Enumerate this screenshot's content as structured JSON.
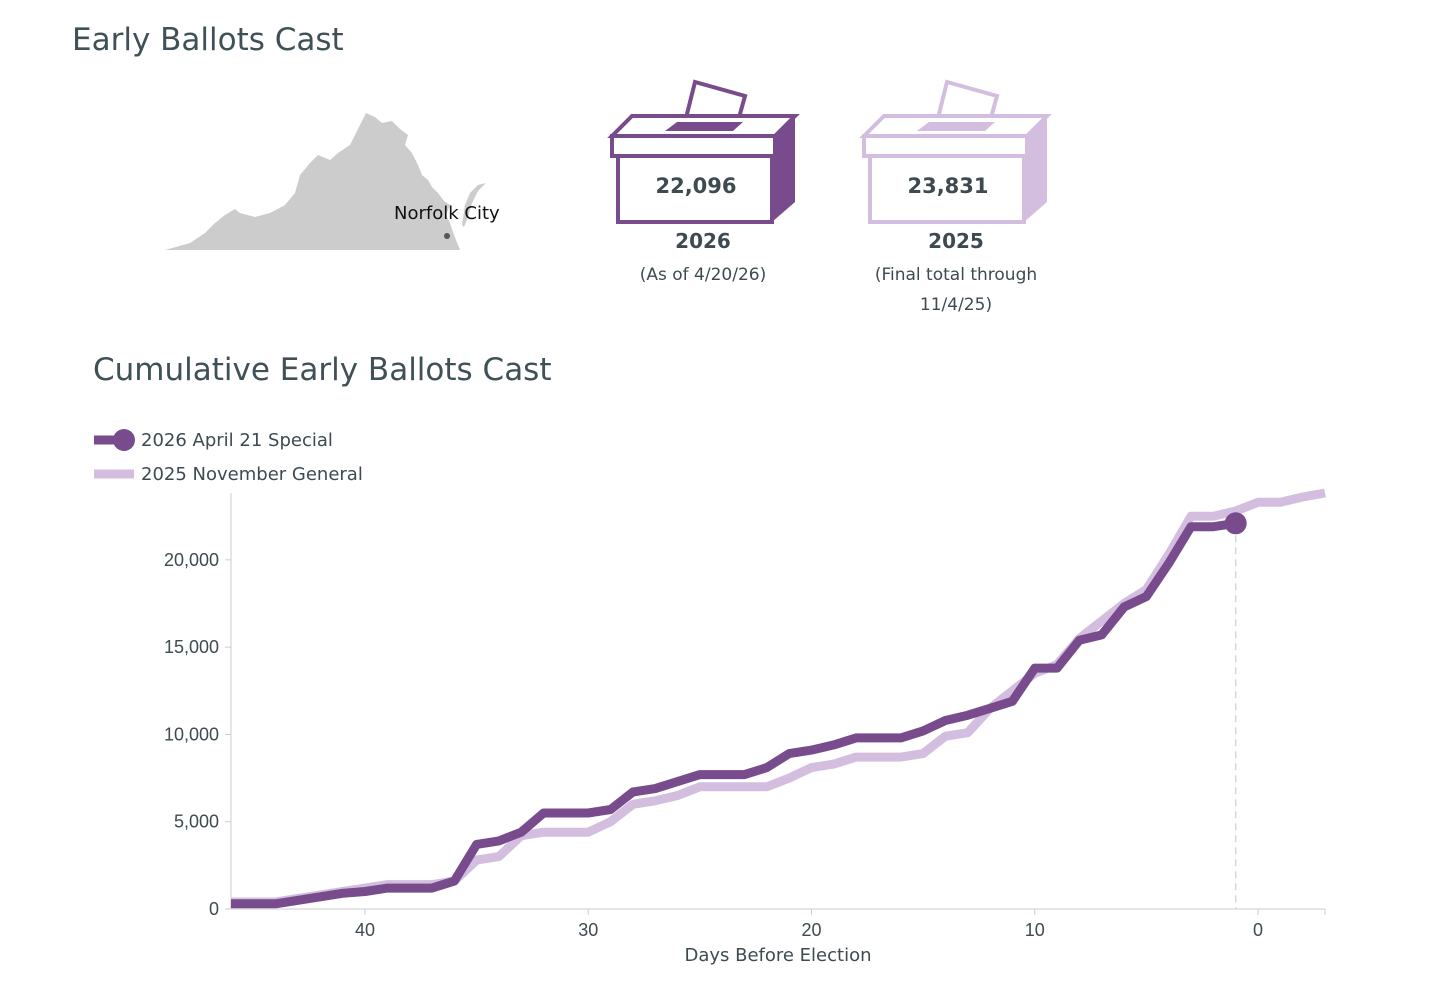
{
  "header": {
    "title": "Early Ballots Cast"
  },
  "map": {
    "label": "Norfolk City",
    "fill_color": "#cccccc",
    "marker_color": "#555555"
  },
  "boxes": [
    {
      "count": "22,096",
      "year": "2026",
      "note": "(As of 4/20/26)",
      "color": "#784b8c"
    },
    {
      "count": "23,831",
      "year": "2025",
      "note_line1": "(Final total through",
      "note_line2": "11/4/25)",
      "color": "#d3bedf"
    }
  ],
  "chart_title": "Cumulative Early Ballots Cast",
  "chart_data": {
    "type": "line",
    "xlabel": "Days Before Election",
    "ylabel": "",
    "xlim": [
      46,
      -3
    ],
    "ylim": [
      0,
      23831
    ],
    "x_ticks": [
      40,
      30,
      20,
      10,
      0
    ],
    "x_tick_labels": [
      "40",
      "30",
      "20",
      "10",
      "0"
    ],
    "y_ticks": [
      0,
      5000,
      10000,
      15000,
      20000
    ],
    "y_tick_labels": [
      "0",
      "5,000",
      "10,000",
      "15,000",
      "20,000"
    ],
    "reference_line_x": 1,
    "series": [
      {
        "name": "2026 April 21 Special",
        "color": "#784b8c",
        "x": [
          46,
          44,
          43,
          42,
          41,
          40,
          39,
          38,
          37,
          36,
          35,
          34,
          33,
          32,
          31,
          30,
          29,
          28,
          27,
          26,
          25,
          24,
          23,
          22,
          21,
          20,
          19,
          18,
          17,
          16,
          15,
          14,
          13,
          12,
          11,
          10,
          9,
          8,
          7,
          6,
          5,
          4,
          3,
          2,
          1
        ],
        "y": [
          300,
          300,
          500,
          700,
          900,
          1000,
          1200,
          1200,
          1200,
          1600,
          3700,
          3900,
          4400,
          5500,
          5500,
          5500,
          5700,
          6700,
          6900,
          7300,
          7700,
          7700,
          7700,
          8100,
          8900,
          9100,
          9400,
          9800,
          9800,
          9800,
          10200,
          10800,
          11100,
          11500,
          11900,
          13800,
          13800,
          15400,
          15700,
          17300,
          17900,
          19800,
          21900,
          21900,
          22096
        ],
        "end_marker": true
      },
      {
        "name": "2025 November General",
        "color": "#d3bedf",
        "x": [
          46,
          44,
          43,
          42,
          41,
          40,
          39,
          38,
          37,
          36,
          35,
          34,
          33,
          32,
          31,
          30,
          29,
          28,
          27,
          26,
          25,
          24,
          23,
          22,
          21,
          20,
          19,
          18,
          17,
          16,
          15,
          14,
          13,
          12,
          11,
          10,
          9,
          8,
          7,
          6,
          5,
          4,
          3,
          2,
          1,
          0,
          -1,
          -2,
          -3
        ],
        "y": [
          400,
          400,
          600,
          800,
          1000,
          1200,
          1400,
          1400,
          1400,
          1600,
          2800,
          3000,
          4200,
          4400,
          4400,
          4400,
          5000,
          6000,
          6200,
          6500,
          7000,
          7000,
          7000,
          7000,
          7500,
          8100,
          8300,
          8700,
          8700,
          8700,
          8900,
          9900,
          10100,
          11500,
          12500,
          13500,
          14000,
          15500,
          16500,
          17500,
          18300,
          20300,
          22500,
          22500,
          22800,
          23300,
          23300,
          23600,
          23831
        ]
      }
    ]
  }
}
